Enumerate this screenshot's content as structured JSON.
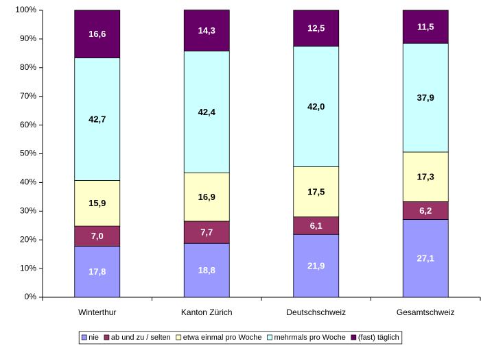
{
  "chart_data": {
    "type": "stacked_bar",
    "categories": [
      "Winterthur",
      "Kanton Zürich",
      "Deutschschweiz",
      "Gesamtschweiz"
    ],
    "series": [
      {
        "name": "nie",
        "color": "#9999ff",
        "values": [
          17.8,
          18.8,
          21.9,
          27.1
        ],
        "value_labels": [
          "17,8",
          "18,8",
          "21,9",
          "27,1"
        ]
      },
      {
        "name": "ab und zu / selten",
        "color": "#993366",
        "values": [
          7.0,
          7.7,
          6.1,
          6.2
        ],
        "value_labels": [
          "7,0",
          "7,7",
          "6,1",
          "6,2"
        ]
      },
      {
        "name": "etwa einmal pro Woche",
        "color": "#ffffcc",
        "values": [
          15.9,
          16.9,
          17.5,
          17.3
        ],
        "value_labels": [
          "15,9",
          "16,9",
          "17,5",
          "17,3"
        ]
      },
      {
        "name": "mehrmals pro Woche",
        "color": "#ccffff",
        "values": [
          42.7,
          42.4,
          42.0,
          37.9
        ],
        "value_labels": [
          "42,7",
          "42,4",
          "42,0",
          "37,9"
        ]
      },
      {
        "name": "(fast) täglich",
        "color": "#660066",
        "values": [
          16.6,
          14.3,
          12.5,
          11.5
        ],
        "value_labels": [
          "16,6",
          "14,3",
          "12,5",
          "11,5"
        ]
      }
    ],
    "ylim": [
      0,
      100
    ],
    "yticks": [
      {
        "value": 0,
        "label": "0%"
      },
      {
        "value": 10,
        "label": "10%"
      },
      {
        "value": 20,
        "label": "20%"
      },
      {
        "value": 30,
        "label": "30%"
      },
      {
        "value": 40,
        "label": "40%"
      },
      {
        "value": 50,
        "label": "50%"
      },
      {
        "value": 60,
        "label": "60%"
      },
      {
        "value": 70,
        "label": "70%"
      },
      {
        "value": 80,
        "label": "80%"
      },
      {
        "value": 90,
        "label": "90%"
      },
      {
        "value": 100,
        "label": "100%"
      }
    ],
    "grid": false,
    "legend": "bottom"
  }
}
